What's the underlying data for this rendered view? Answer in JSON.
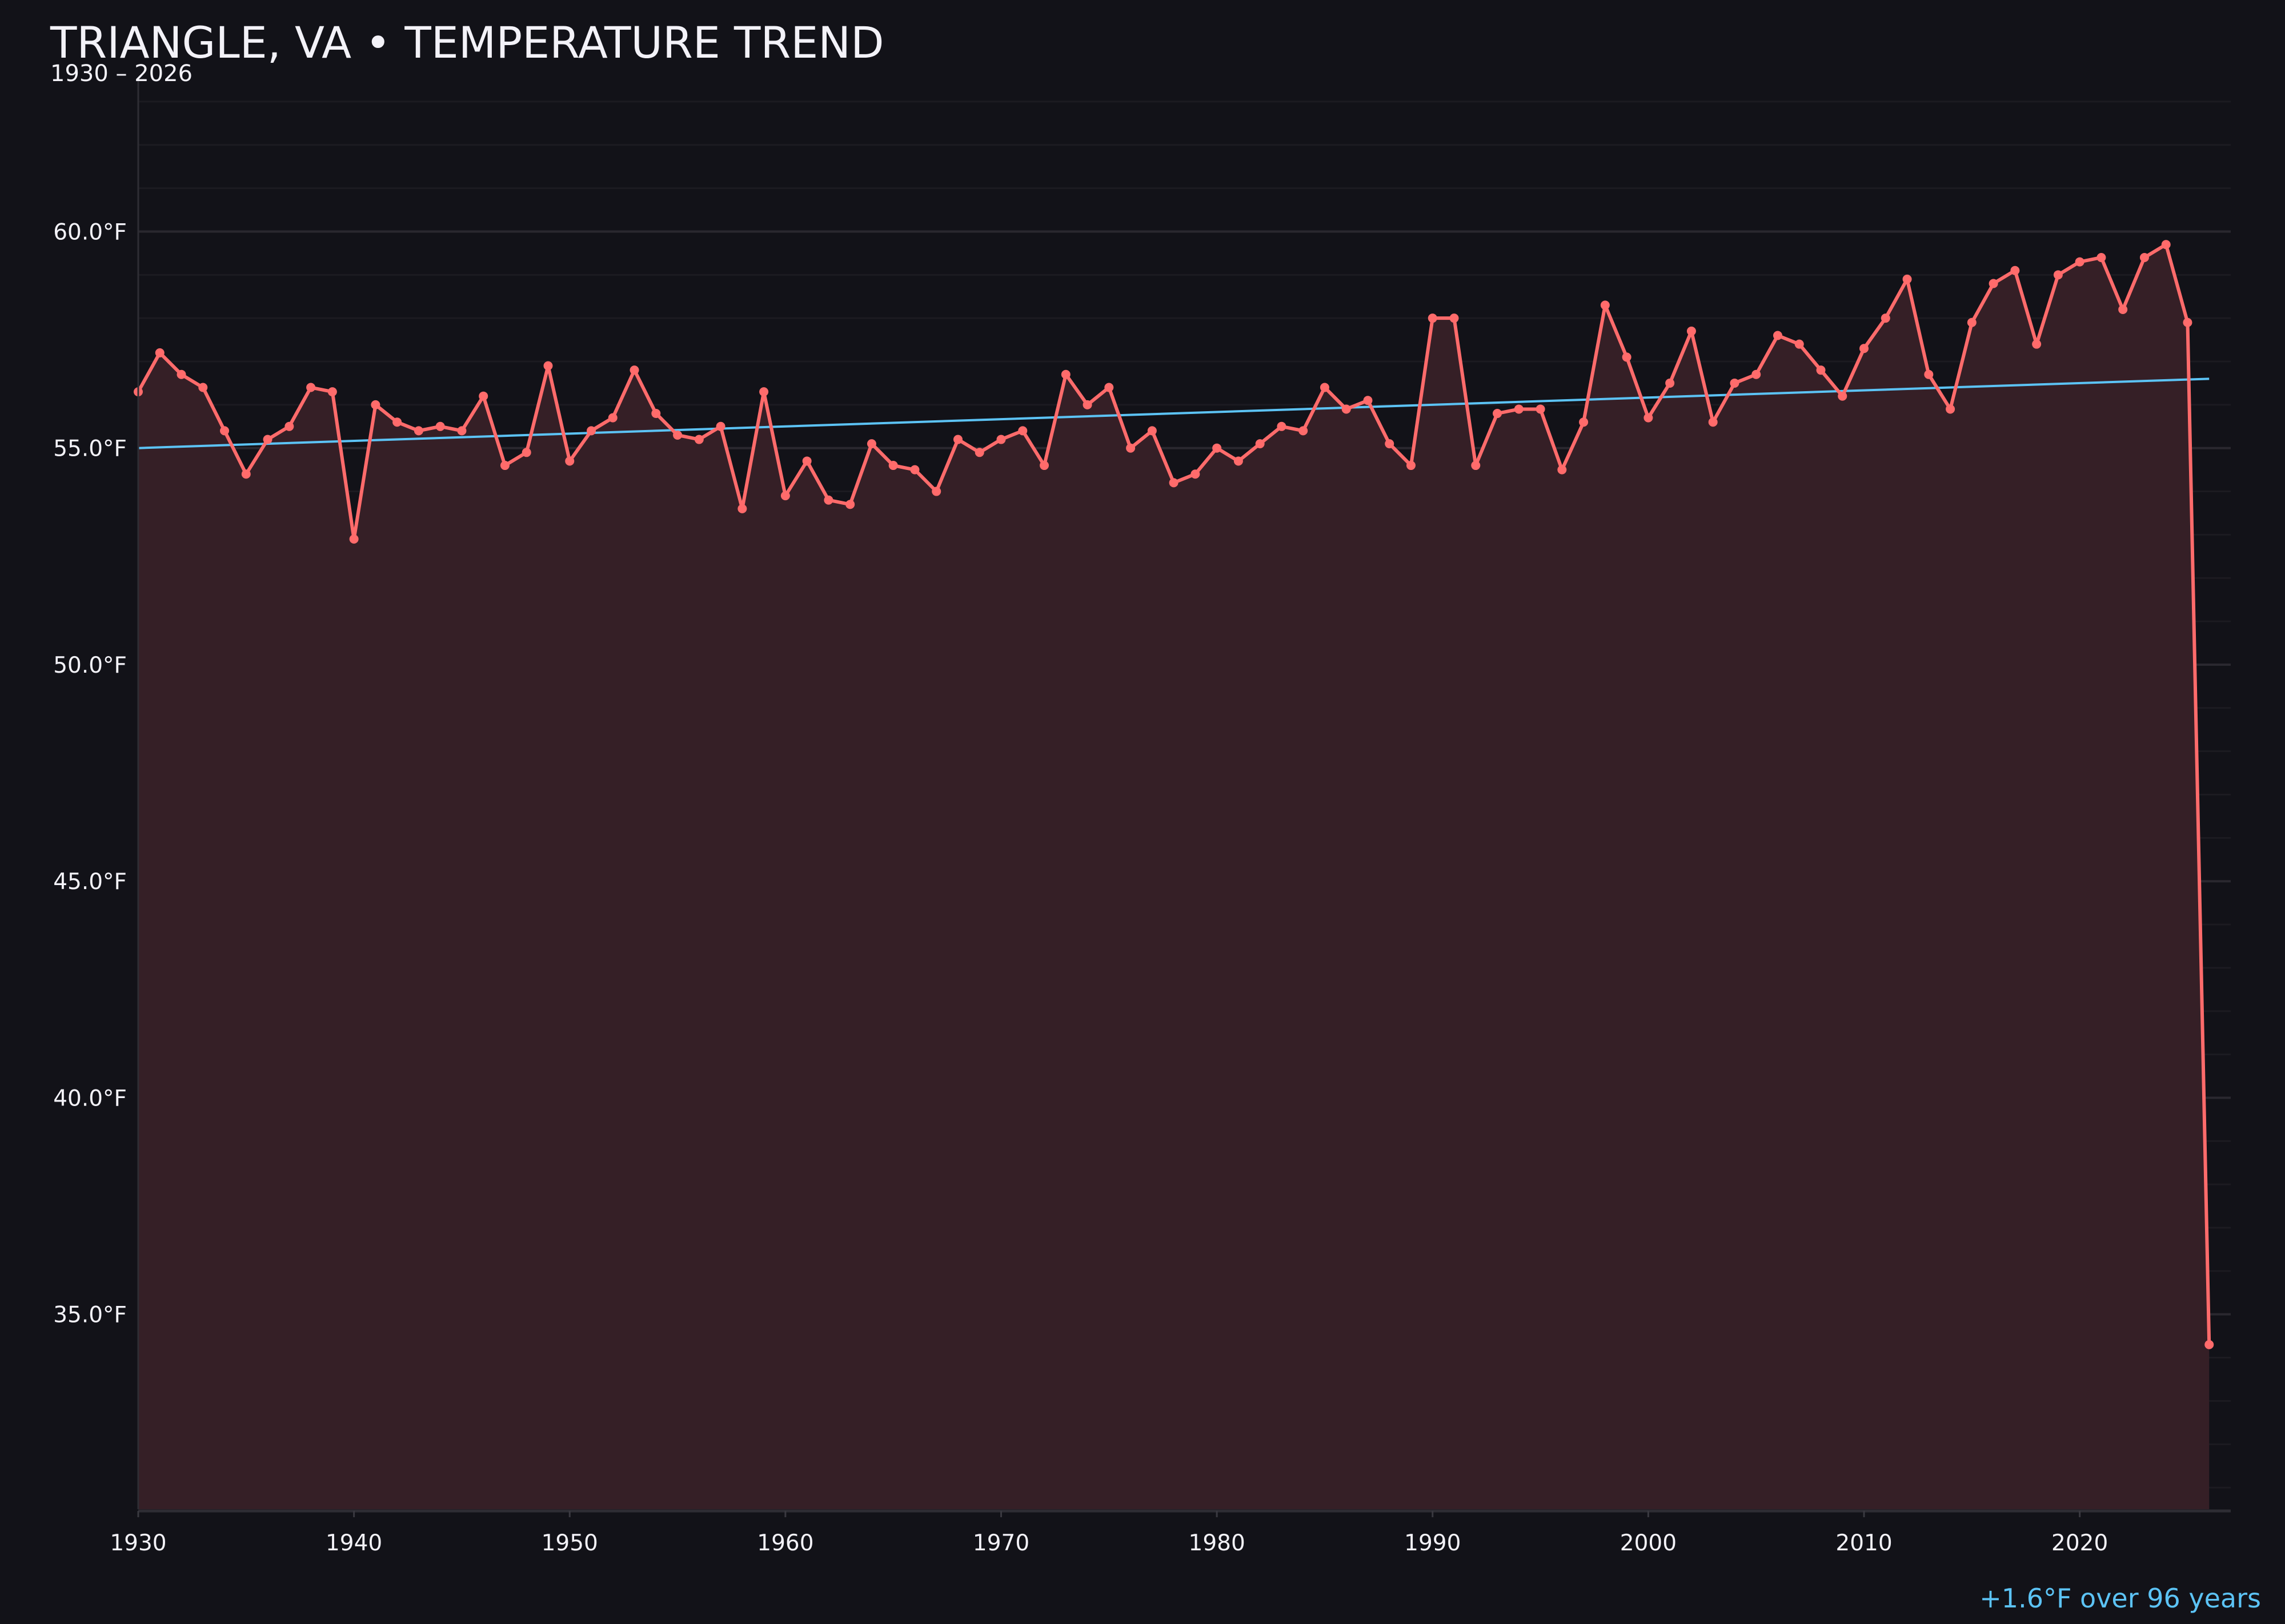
{
  "title": "TRIANGLE, VA • TEMPERATURE TREND",
  "subtitle": "1930 – 2026",
  "footer": "+1.6°F over 96 years",
  "colors": {
    "background": "#121218",
    "series": "#ff6b6b",
    "fill": "#351f26",
    "trend": "#5cc3f5",
    "text": "#f3f2f8",
    "grid": "#26242b"
  },
  "chart_data": {
    "type": "line",
    "title": "TRIANGLE, VA • TEMPERATURE TREND",
    "subtitle": "1930 – 2026",
    "xlabel": "",
    "ylabel": "",
    "xlim": [
      1930,
      2027
    ],
    "ylim": [
      30.5,
      63.5
    ],
    "grid": true,
    "x_ticks": [
      1930,
      1940,
      1950,
      1960,
      1970,
      1980,
      1990,
      2000,
      2010,
      2020
    ],
    "y_ticks": [
      35,
      40,
      45,
      50,
      55,
      60
    ],
    "y_tick_labels": [
      "35.0°F",
      "40.0°F",
      "45.0°F",
      "50.0°F",
      "55.0°F",
      "60.0°F"
    ],
    "x_start": 1930,
    "values": [
      56.3,
      57.2,
      56.7,
      56.4,
      55.4,
      54.4,
      55.2,
      55.5,
      56.4,
      56.3,
      52.9,
      56.0,
      55.6,
      55.4,
      55.5,
      55.4,
      56.2,
      54.6,
      54.9,
      56.9,
      54.7,
      55.4,
      55.7,
      56.8,
      55.8,
      55.3,
      55.2,
      55.5,
      53.6,
      56.3,
      53.9,
      54.7,
      53.8,
      53.7,
      55.1,
      54.6,
      54.5,
      54.0,
      55.2,
      54.9,
      55.2,
      55.4,
      54.6,
      56.7,
      56.0,
      56.4,
      55.0,
      55.4,
      54.2,
      54.4,
      55.0,
      54.7,
      55.1,
      55.5,
      55.4,
      56.4,
      55.9,
      56.1,
      55.1,
      54.6,
      58.0,
      58.0,
      54.6,
      55.8,
      55.9,
      55.9,
      54.5,
      55.6,
      58.3,
      57.1,
      55.7,
      56.5,
      57.7,
      55.6,
      56.5,
      56.7,
      57.6,
      57.4,
      56.8,
      56.2,
      57.3,
      58.0,
      58.9,
      56.7,
      55.9,
      57.9,
      58.8,
      59.1,
      57.4,
      59.0,
      59.3,
      59.4,
      58.2,
      59.4,
      59.7,
      57.9,
      34.3
    ],
    "trend": {
      "x": [
        1930,
        2026
      ],
      "y": [
        55.0,
        56.6
      ]
    },
    "annotation": "+1.6°F over 96 years"
  }
}
